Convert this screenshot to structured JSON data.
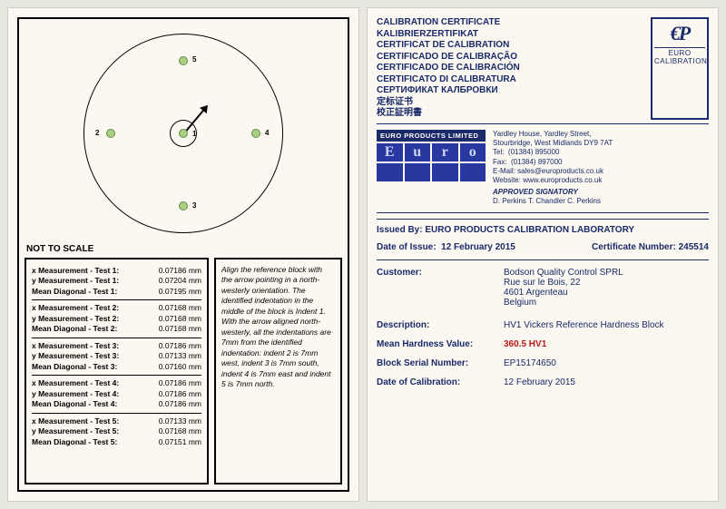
{
  "left": {
    "not_to_scale": "NOT TO SCALE",
    "indent_labels": [
      "1",
      "2",
      "3",
      "4",
      "5"
    ],
    "measurements": [
      {
        "test": "1",
        "x": "0.07186 mm",
        "y": "0.07204 mm",
        "mean": "0.07195 mm"
      },
      {
        "test": "2",
        "x": "0.07168 mm",
        "y": "0.07168 mm",
        "mean": "0.07168 mm"
      },
      {
        "test": "3",
        "x": "0.07186 mm",
        "y": "0.07133 mm",
        "mean": "0.07160 mm"
      },
      {
        "test": "4",
        "x": "0.07186 mm",
        "y": "0.07186 mm",
        "mean": "0.07186 mm"
      },
      {
        "test": "5",
        "x": "0.07133 mm",
        "y": "0.07168 mm",
        "mean": "0.07151 mm"
      }
    ],
    "x_label_prefix": "x Measurement - Test ",
    "y_label_prefix": "y Measurement - Test ",
    "mean_label_prefix": "Mean Diagonal - Test ",
    "label_suffix": ":",
    "instructions": "Align the reference block with the arrow pointing in a north-westerly orientation. The identified indentation in the middle of the block is Indent 1. With the arrow aligned north-westerly, all the indentations are 7mm from the identified indentation: indent 2 is 7mm west, indent 3 is 7mm south, indent 4 is 7mm east and indent 5 is 7mm north."
  },
  "right": {
    "title_lines": [
      "CALIBRATION CERTIFICATE",
      "KALIBRIERZERTIFIKAT",
      "CERTIFICAT DE CALIBRATION",
      "CERTIFICADO DE CALIBRAÇÃO",
      "CERTIFICADO DE CALIBRACIÓN",
      "CERTIFICATO DI CALIBRATURA",
      "СЕРТИФИКАТ КАЛБРОВКИ",
      "定标证书",
      "校正証明書"
    ],
    "ep_mono": "€P",
    "ep_sub": "EURO CALIBRATION",
    "company_bar": "EURO PRODUCTS LIMITED",
    "logo_letters": [
      "E",
      "u",
      "r",
      "o"
    ],
    "address": {
      "l1": "Yardley House, Yardley Street,",
      "l2": "Stourbridge, West Midlands DY9 7AT",
      "tel_k": "Tel:",
      "tel_v": "(01384) 895000",
      "fax_k": "Fax:",
      "fax_v": "(01384) 897000",
      "email_k": "E-Mail:",
      "email_v": "sales@europroducts.co.uk",
      "web_k": "Website:",
      "web_v": "www.europroducts.co.uk",
      "approved": "APPROVED SIGNATORY",
      "sigs": "D. Perkins      T. Chandler      C. Perkins"
    },
    "issued_by_k": "Issued By:",
    "issued_by_v": "EURO PRODUCTS CALIBRATION LABORATORY",
    "date_issue_k": "Date of Issue:",
    "date_issue_v": "12 February 2015",
    "cert_no_k": "Certificate Number:",
    "cert_no_v": "245514",
    "customer_k": "Customer:",
    "customer_l1": "Bodson Quality Control SPRL",
    "customer_l2": "Rue sur le Bois, 22",
    "customer_l3": "4601 Argenteau",
    "customer_l4": "Belgium",
    "desc_k": "Description:",
    "desc_v": "HV1  Vickers Reference Hardness Block",
    "mean_k": "Mean Hardness Value:",
    "mean_v": "360.5 HV1",
    "serial_k": "Block Serial Number:",
    "serial_v": "EP15174650",
    "cal_date_k": "Date of Calibration:",
    "cal_date_v": "12 February 2015"
  },
  "colors": {
    "brand": "#1a2a6a",
    "accent_red": "#c01818",
    "indent_fill": "#a8d080"
  }
}
